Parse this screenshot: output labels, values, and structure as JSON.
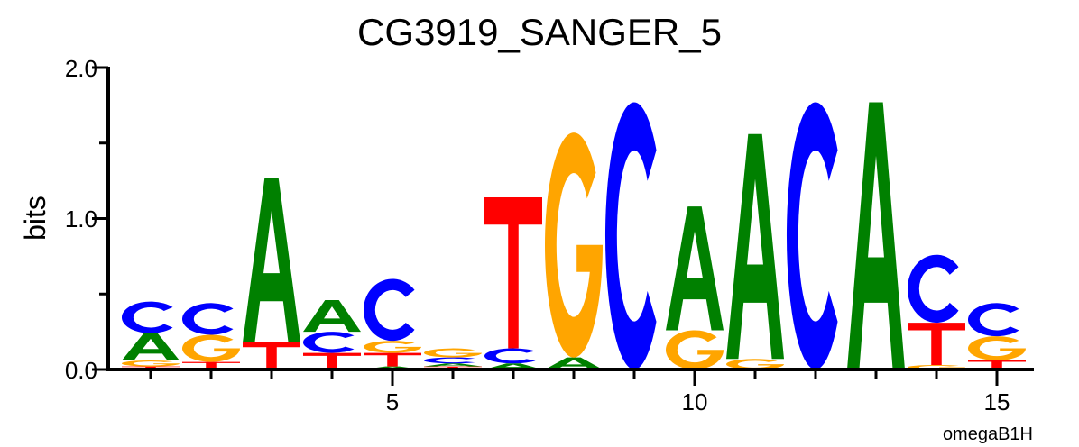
{
  "chart_data": {
    "type": "sequence-logo",
    "title": "CG3919_SANGER_5",
    "ylabel": "bits",
    "xlabel": "",
    "footer": "omegaB1H",
    "ylim": [
      0,
      2.0
    ],
    "ytick_labels": [
      "0.0",
      "1.0",
      "2.0"
    ],
    "xtick_labels": [
      "5",
      "10",
      "15"
    ],
    "colors": {
      "A": "#008000",
      "C": "#0000ff",
      "G": "#ffa500",
      "T": "#ff0000"
    },
    "positions": [
      {
        "pos": 1,
        "stack": [
          [
            "T",
            0.02
          ],
          [
            "G",
            0.04
          ],
          [
            "A",
            0.18
          ],
          [
            "C",
            0.21
          ]
        ]
      },
      {
        "pos": 2,
        "stack": [
          [
            "A",
            0.01
          ],
          [
            "T",
            0.04
          ],
          [
            "G",
            0.18
          ],
          [
            "C",
            0.21
          ]
        ]
      },
      {
        "pos": 3,
        "stack": [
          [
            "T",
            0.18
          ],
          [
            "A",
            1.09
          ]
        ]
      },
      {
        "pos": 4,
        "stack": [
          [
            "T",
            0.11
          ],
          [
            "C",
            0.14
          ],
          [
            "A",
            0.21
          ]
        ]
      },
      {
        "pos": 5,
        "stack": [
          [
            "A",
            0.02
          ],
          [
            "T",
            0.09
          ],
          [
            "G",
            0.08
          ],
          [
            "C",
            0.41
          ]
        ]
      },
      {
        "pos": 6,
        "stack": [
          [
            "T",
            0.02
          ],
          [
            "A",
            0.02
          ],
          [
            "C",
            0.04
          ],
          [
            "G",
            0.06
          ]
        ]
      },
      {
        "pos": 7,
        "stack": [
          [
            "A",
            0.04
          ],
          [
            "C",
            0.1
          ],
          [
            "T",
            1.0
          ]
        ]
      },
      {
        "pos": 8,
        "stack": [
          [
            "A",
            0.08
          ],
          [
            "G",
            1.49
          ]
        ]
      },
      {
        "pos": 9,
        "stack": [
          [
            "C",
            1.77
          ]
        ]
      },
      {
        "pos": 10,
        "stack": [
          [
            "G",
            0.26
          ],
          [
            "A",
            0.82
          ]
        ]
      },
      {
        "pos": 11,
        "stack": [
          [
            "G",
            0.07
          ],
          [
            "A",
            1.49
          ]
        ]
      },
      {
        "pos": 12,
        "stack": [
          [
            "C",
            1.77
          ]
        ]
      },
      {
        "pos": 13,
        "stack": [
          [
            "A",
            1.77
          ]
        ]
      },
      {
        "pos": 14,
        "stack": [
          [
            "G",
            0.03
          ],
          [
            "T",
            0.28
          ],
          [
            "C",
            0.45
          ]
        ]
      },
      {
        "pos": 15,
        "stack": [
          [
            "A",
            0.01
          ],
          [
            "T",
            0.05
          ],
          [
            "G",
            0.16
          ],
          [
            "C",
            0.22
          ]
        ]
      }
    ]
  }
}
